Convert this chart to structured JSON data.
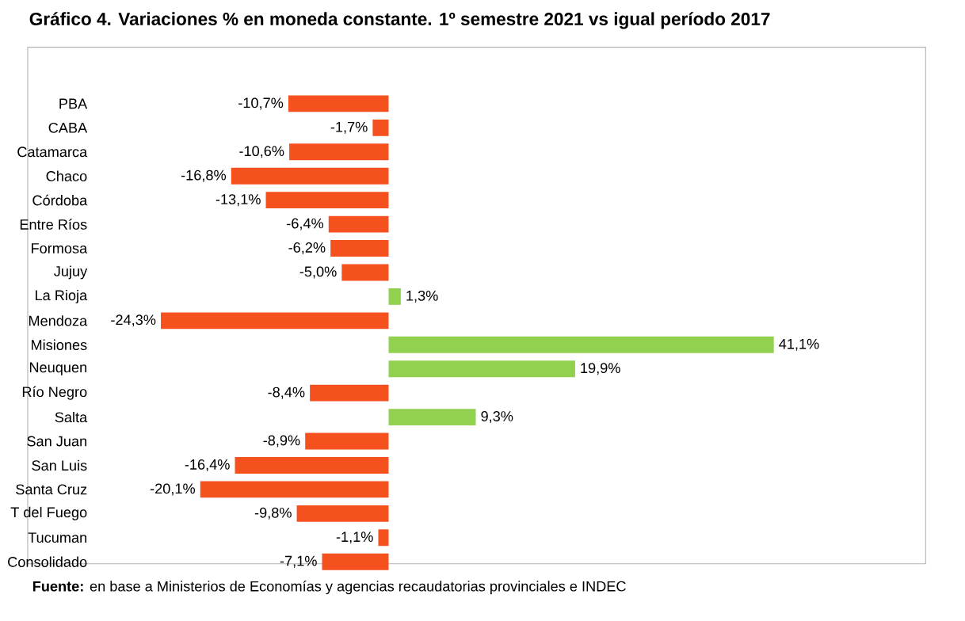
{
  "chart_data": {
    "type": "bar",
    "orientation": "horizontal",
    "title": "Gráfico 4. Variaciones % en moneda constante. 1º semestre 2021 vs igual período 2017",
    "categories": [
      "PBA",
      "CABA",
      "Catamarca",
      "Chaco",
      "Córdoba",
      "Entre Ríos",
      "Formosa",
      "Jujuy",
      "La Rioja",
      "Mendoza",
      "Misiones",
      "Neuquen",
      "Río Negro",
      "Salta",
      "San Juan",
      "San Luis",
      "Santa Cruz",
      "T del Fuego",
      "Tucuman",
      "Consolidado"
    ],
    "values": [
      -10.7,
      -1.7,
      -10.6,
      -16.8,
      -13.1,
      -6.4,
      -6.2,
      -5.0,
      1.3,
      -24.3,
      41.1,
      19.9,
      -8.4,
      9.3,
      -8.9,
      -16.4,
      -20.1,
      -9.8,
      -1.1,
      -7.1
    ],
    "value_labels": [
      "-10,7%",
      "-1,7%",
      "-10,6%",
      "-16,8%",
      "-13,1%",
      "-6,4%",
      "-6,2%",
      "-5,0%",
      "1,3%",
      "-24,3%",
      "41,1%",
      "19,9%",
      "-8,4%",
      "9,3%",
      "-8,9%",
      "-16,4%",
      "-20,1%",
      "-9,8%",
      "-1,1%",
      "-7,1%"
    ],
    "colors": [
      "#f4511e",
      "#f4511e",
      "#f4511e",
      "#f4511e",
      "#f4511e",
      "#f4511e",
      "#f4511e",
      "#f4511e",
      "#92d050",
      "#f4511e",
      "#92d050",
      "#92d050",
      "#f4511e",
      "#92d050",
      "#f4511e",
      "#f4511e",
      "#f4511e",
      "#f4511e",
      "#f4511e",
      "#f4511e"
    ],
    "annotations": [
      "**Fuente:** en base a Ministerios de Economías y agencias recaudatorias provinciales e INDEC"
    ]
  }
}
